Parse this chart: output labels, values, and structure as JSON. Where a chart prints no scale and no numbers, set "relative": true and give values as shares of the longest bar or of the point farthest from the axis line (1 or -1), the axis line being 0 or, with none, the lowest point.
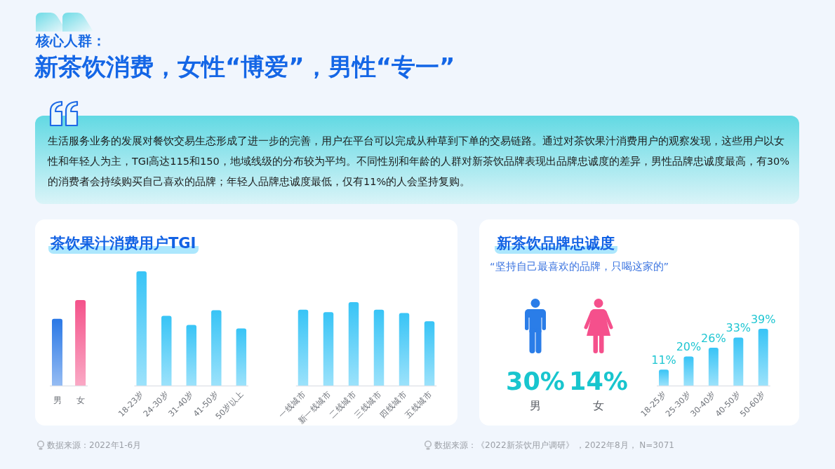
{
  "chart_data": [
    {
      "type": "other",
      "title": "核心人群：",
      "subtitle": "新茶饮消费，女性“博爱”，男性“专一”",
      "annotations": [
        "生活服务业务的发展对餐饮交易生态形成了进一步的完善，用户在平台可以完成从种草到下单的交易链路。通过对茶饮果汁消费用户的观察发现，这些用户以女性和年轻人为主，TGI高达115和150，地域线级的分布较为平均。不同性别和年龄的人群对新茶饮品牌表现出品牌忠诚度的差异，男性品牌忠诚度最高，有30%的消费者会持续购买自己喜欢的品牌；年轻人品牌忠诚度最低，仅有11%的人会坚持复购。"
      ]
    },
    {
      "type": "bar",
      "title": "茶饮果汁消费用户TGI",
      "relative": true,
      "categories": [
        "男",
        "女"
      ],
      "values": [
        0.78,
        1
      ],
      "colors": [
        "#2a78e6",
        "#f4528a"
      ],
      "annotations": [
        "数据来源：2022年1-6月"
      ]
    },
    {
      "type": "bar",
      "relative": true,
      "categories": [
        "18-23岁",
        "24-30岁",
        "31-40岁",
        "41-50岁",
        "50岁以上"
      ],
      "values": [
        1,
        0.61,
        0.53,
        0.66,
        0.5
      ],
      "color": "#38c4f6"
    },
    {
      "type": "bar",
      "relative": true,
      "categories": [
        "一线城市",
        "新一线城市",
        "二线城市",
        "三线城市",
        "四线城市",
        "五线城市"
      ],
      "values": [
        0.91,
        0.88,
        1,
        0.91,
        0.87,
        0.77
      ],
      "color": "#38c4f6"
    },
    {
      "type": "other",
      "title": "新茶饮品牌忠诚度",
      "subtitle": "“坚持自己最喜欢的品牌，只喝这家的”",
      "categories": [
        "男",
        "女"
      ],
      "values": [
        30,
        14
      ],
      "value_labels": [
        "30%",
        "14%"
      ],
      "colors": [
        "#2a7de8",
        "#f5508c"
      ],
      "annotations": [
        "数据来源：《2022新茶饮用户调研》 ，2022年8月， N=3071"
      ]
    },
    {
      "type": "bar",
      "categories": [
        "18-25岁",
        "25-30岁",
        "30-40岁",
        "40-50岁",
        "50-60岁"
      ],
      "values": [
        11,
        20,
        26,
        33,
        39
      ],
      "value_labels": [
        "11%",
        "20%",
        "26%",
        "33%",
        "39%"
      ],
      "color": "#38c4f6"
    }
  ]
}
